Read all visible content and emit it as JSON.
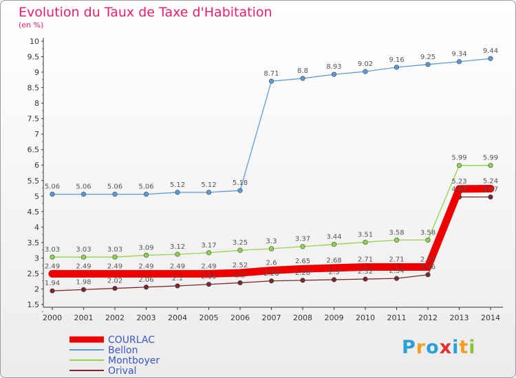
{
  "chart_data": {
    "type": "line",
    "title": "Evolution du Taux de Taxe d'Habitation",
    "subtitle": "(en %)",
    "x": [
      "2000",
      "2001",
      "2002",
      "2003",
      "2004",
      "2005",
      "2006",
      "2007",
      "2008",
      "2009",
      "2010",
      "2011",
      "2012",
      "2013",
      "2014"
    ],
    "ylim": [
      1.5,
      10
    ],
    "yticks": [
      "1.5",
      "2",
      "2.5",
      "3",
      "3.5",
      "4",
      "4.5",
      "5",
      "5.5",
      "6",
      "6.5",
      "7",
      "7.5",
      "8",
      "8.5",
      "9",
      "9.5",
      "10"
    ],
    "grid": false,
    "legend_position": "bottom-left",
    "series": [
      {
        "name": "COURLAC",
        "color": "#ee0000",
        "values": [
          2.49,
          2.49,
          2.49,
          2.49,
          2.49,
          2.49,
          2.52,
          2.6,
          2.65,
          2.68,
          2.71,
          2.71,
          2.71,
          5.23,
          5.24
        ],
        "labels": [
          "2.49",
          "2.49",
          "2.49",
          "2.49",
          "2.49",
          "2.49",
          "2.52",
          "2.6",
          "2.65",
          "2.68",
          "2.71",
          "2.71",
          "2.71",
          "5.23",
          "5.24"
        ]
      },
      {
        "name": "Bellon",
        "color": "#5b9bd5",
        "values": [
          5.06,
          5.06,
          5.06,
          5.06,
          5.12,
          5.12,
          5.18,
          8.71,
          8.8,
          8.93,
          9.02,
          9.16,
          9.25,
          9.34,
          9.44
        ],
        "labels": [
          "5.06",
          "5.06",
          "5.06",
          "5.06",
          "5.12",
          "5.12",
          "5.18",
          "8.71",
          "8.8",
          "8.93",
          "9.02",
          "9.16",
          "9.25",
          "9.34",
          "9.44"
        ]
      },
      {
        "name": "Montboyer",
        "color": "#8fd44a",
        "values": [
          3.03,
          3.03,
          3.03,
          3.09,
          3.12,
          3.17,
          3.25,
          3.3,
          3.37,
          3.44,
          3.51,
          3.58,
          3.58,
          5.99,
          5.99
        ],
        "labels": [
          "3.03",
          "3.03",
          "3.03",
          "3.09",
          "3.12",
          "3.17",
          "3.25",
          "3.3",
          "3.37",
          "3.44",
          "3.51",
          "3.58",
          "3.58",
          "5.99",
          "5.99"
        ]
      },
      {
        "name": "Orival",
        "color": "#7a2630",
        "values": [
          1.94,
          1.98,
          2.02,
          2.06,
          2.1,
          2.15,
          2.2,
          2.26,
          2.28,
          2.3,
          2.32,
          2.34,
          2.46,
          4.97,
          4.97
        ],
        "labels": [
          "1.94",
          "1.98",
          "2.02",
          "2.06",
          "2.1",
          "2.15",
          "2.2",
          "2.26",
          "2.28",
          "2.3",
          "2.32",
          "2.34",
          "2.46",
          "4.97",
          "4.97"
        ]
      }
    ]
  },
  "logo": {
    "text": "Proxiti",
    "letters": [
      "P",
      "r",
      "o",
      "x",
      "i",
      "t",
      "i"
    ]
  }
}
